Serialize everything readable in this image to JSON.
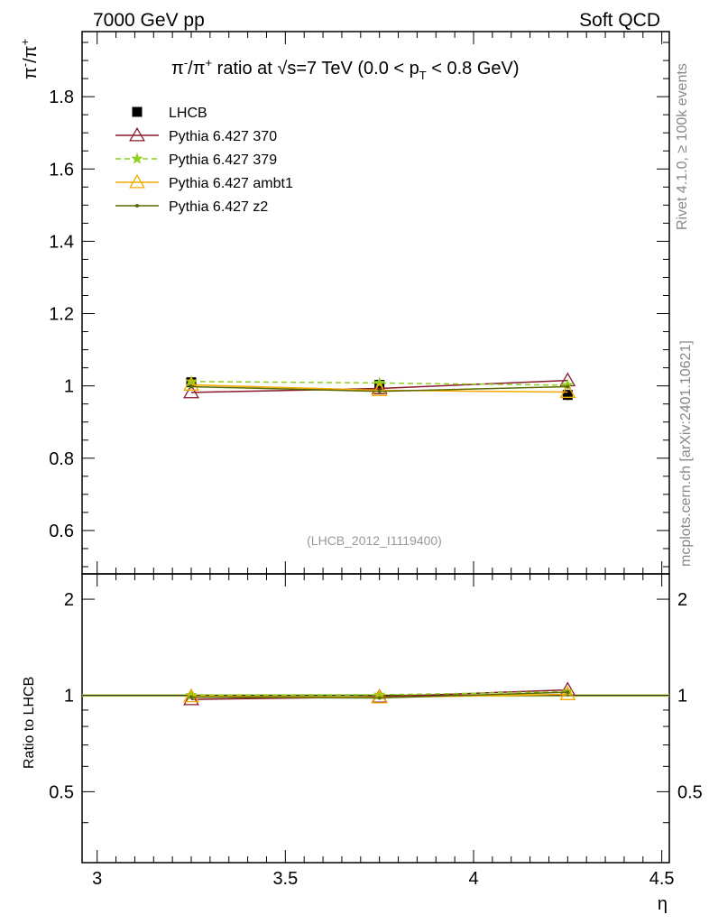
{
  "header": {
    "left": "7000 GeV pp",
    "right": "Soft QCD"
  },
  "side": {
    "rivet": "Rivet 4.1.0, ≥ 100k events",
    "mcplots": "mcplots.cern.ch [arXiv:2401.10621]"
  },
  "chart_data": {
    "type": "line",
    "title": {
      "part1": "π",
      "sup1": "-",
      "part2": "/π",
      "sup2": "+",
      "part3": " ratio at √s=7 TeV (0.0 < p",
      "sub": "T",
      "part4": " < 0.8 GeV)"
    },
    "analysis_tag": "(LHCB_2012_I1119400)",
    "xlabel": "η",
    "ylabel": {
      "base": "π",
      "sup1": "-",
      "mid": "/π",
      "sup2": "+"
    },
    "ratio_ylabel": "Ratio to LHCB",
    "xlim": [
      2.96,
      4.52
    ],
    "ylim": [
      0.48,
      1.98
    ],
    "ratio_ylim": [
      0.3,
      2.4
    ],
    "x_ticks": [
      3,
      3.5,
      4,
      4.5
    ],
    "x_tick_labels": [
      "3",
      "3.5",
      "4",
      "4.5"
    ],
    "y_ticks": [
      0.6,
      0.8,
      1,
      1.2,
      1.4,
      1.6,
      1.8
    ],
    "y_tick_labels": [
      "0.6",
      "0.8",
      "1",
      "1.2",
      "1.4",
      "1.6",
      "1.8"
    ],
    "ratio_y_ticks": [
      0.5,
      1,
      2
    ],
    "ratio_y_tick_labels": [
      "0.5",
      "1",
      "2"
    ],
    "legend_position": "top-left",
    "x": [
      3.25,
      3.75,
      4.25
    ],
    "series": [
      {
        "name": "LHCB",
        "values": [
          1.01,
          1.003,
          0.975
        ],
        "color": "#000000",
        "marker": "square",
        "style": "points"
      },
      {
        "name": "Pythia 6.427 370",
        "values": [
          0.982,
          0.993,
          1.015
        ],
        "color": "#8b1a2c",
        "marker": "triangle-open",
        "style": "solid"
      },
      {
        "name": "Pythia 6.427 379",
        "values": [
          1.012,
          1.008,
          1.002
        ],
        "color": "#8fcf1f",
        "marker": "star",
        "style": "dashed"
      },
      {
        "name": "Pythia 6.427 ambt1",
        "values": [
          1.003,
          0.988,
          0.983
        ],
        "color": "#f2a900",
        "marker": "triangle-open",
        "style": "solid"
      },
      {
        "name": "Pythia 6.427 z2",
        "values": [
          0.998,
          0.985,
          0.998
        ],
        "color": "#5a6b00",
        "marker": "dot",
        "style": "solid"
      }
    ]
  }
}
